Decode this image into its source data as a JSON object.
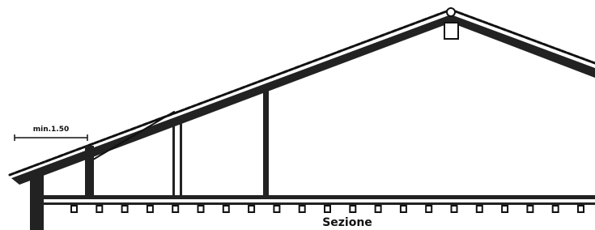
{
  "labels": {
    "dimension": "min.1.50",
    "caption": "Sezione"
  }
}
